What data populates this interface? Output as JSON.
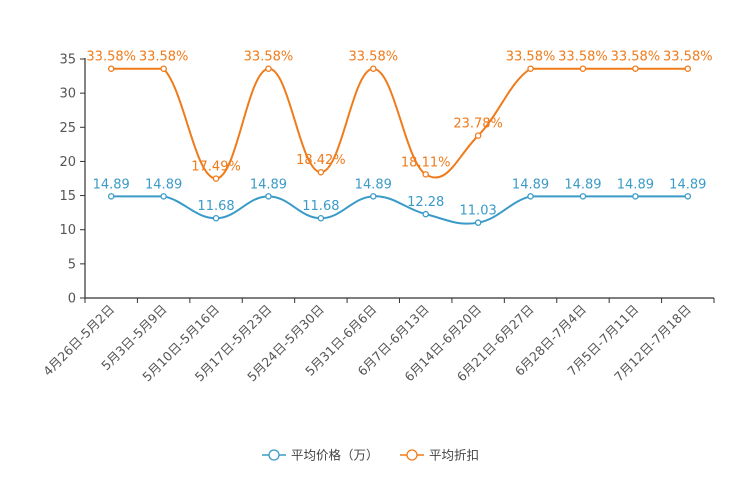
{
  "chart_data": {
    "type": "line",
    "title": "",
    "xlabel": "",
    "ylabel": "",
    "ylim": [
      0,
      35
    ],
    "yticks": [
      0,
      5,
      10,
      15,
      20,
      25,
      30,
      35
    ],
    "grid": false,
    "legend_position": "bottom-center",
    "categories": [
      "4月26日-5月2日",
      "5月3日-5月9日",
      "5月10日-5月16日",
      "5月17日-5月23日",
      "5月24日-5月30日",
      "5月31日-6月6日",
      "6月7日-6月13日",
      "6月14日-6月20日",
      "6月21日-6月27日",
      "6月28日-7月4日",
      "7月5日-7月11日",
      "7月12日-7月18日"
    ],
    "series": [
      {
        "name": "平均价格（万）",
        "color": "#3a9bc8",
        "values": [
          14.89,
          14.89,
          11.68,
          14.89,
          11.68,
          14.89,
          12.28,
          11.03,
          14.89,
          14.89,
          14.89,
          14.89
        ],
        "labels": [
          "14.89",
          "14.89",
          "11.68",
          "14.89",
          "11.68",
          "14.89",
          "12.28",
          "11.03",
          "14.89",
          "14.89",
          "14.89",
          "14.89"
        ]
      },
      {
        "name": "平均折扣",
        "color": "#f07b1b",
        "values": [
          33.58,
          33.58,
          17.49,
          33.58,
          18.42,
          33.58,
          18.11,
          23.78,
          33.58,
          33.58,
          33.58,
          33.58
        ],
        "labels": [
          "33.58%",
          "33.58%",
          "17.49%",
          "33.58%",
          "18.42%",
          "33.58%",
          "18.11%",
          "23.78%",
          "33.58%",
          "33.58%",
          "33.58%",
          "33.58%"
        ]
      }
    ]
  }
}
